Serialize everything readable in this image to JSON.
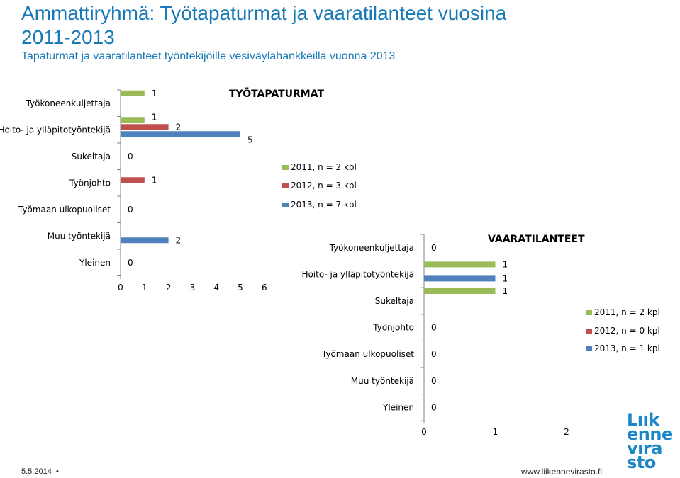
{
  "header": {
    "title": "Ammattiryhmä: Työtapaturmat ja vaaratilanteet vuosina 2011-2013",
    "subtitle": "Tapaturmat ja vaaratilanteet työntekijöille vesiväylähankkeilla vuonna 2013"
  },
  "footer": {
    "date": "5.5.2014",
    "url": "www.liikennevirasto.fi"
  },
  "logo": {
    "lines": [
      "Lıık",
      "enne",
      "vıra",
      "sto"
    ]
  },
  "colors": {
    "y2011": "#9bbb59",
    "y2012": "#c0504d",
    "y2013": "#4f81bd",
    "title_blue": "#1a7ab6"
  },
  "chart_data": [
    {
      "type": "bar",
      "orientation": "horizontal",
      "title": "TYÖTAPATURMAT",
      "categories": [
        "Työkoneenkuljettaja",
        "Hoito- ja ylläpitotyöntekijä",
        "Sukeltaja",
        "Työnjohto",
        "Työmaan ulkopuoliset",
        "Muu työntekijä",
        "Yleinen"
      ],
      "series": [
        {
          "name": "2011, n = 2 kpl",
          "values": [
            1,
            1,
            0,
            0,
            0,
            0,
            0
          ]
        },
        {
          "name": "2012, n = 3 kpl",
          "values": [
            0,
            2,
            0,
            1,
            0,
            0,
            0
          ]
        },
        {
          "name": "2013, n = 7 kpl",
          "values": [
            0,
            5,
            0,
            0,
            0,
            2,
            0
          ]
        }
      ],
      "data_labels": [
        "1",
        "1",
        "2",
        "5",
        "0",
        "1",
        "0",
        "2",
        "0"
      ],
      "xlim": [
        0,
        6
      ],
      "xticks": [
        "0",
        "1",
        "2",
        "3",
        "4",
        "5",
        "6"
      ],
      "legend": "right"
    },
    {
      "type": "bar",
      "orientation": "horizontal",
      "title": "VAARATILANTEET",
      "categories": [
        "Työkoneenkuljettaja",
        "Hoito- ja ylläpitotyöntekijä",
        "Sukeltaja",
        "Työnjohto",
        "Työmaan ulkopuoliset",
        "Muu työntekijä",
        "Yleinen"
      ],
      "series": [
        {
          "name": "2011, n = 2 kpl",
          "values": [
            0,
            1,
            1,
            0,
            0,
            0,
            0
          ]
        },
        {
          "name": "2012, n = 0 kpl",
          "values": [
            0,
            0,
            0,
            0,
            0,
            0,
            0
          ]
        },
        {
          "name": "2013, n = 1 kpl",
          "values": [
            0,
            1,
            0,
            0,
            0,
            0,
            0
          ]
        }
      ],
      "data_labels": [
        "0",
        "1",
        "1",
        "1",
        "0",
        "0",
        "0",
        "0"
      ],
      "xlim": [
        0,
        2
      ],
      "xticks": [
        "0",
        "1",
        "2"
      ],
      "legend": "right"
    }
  ]
}
